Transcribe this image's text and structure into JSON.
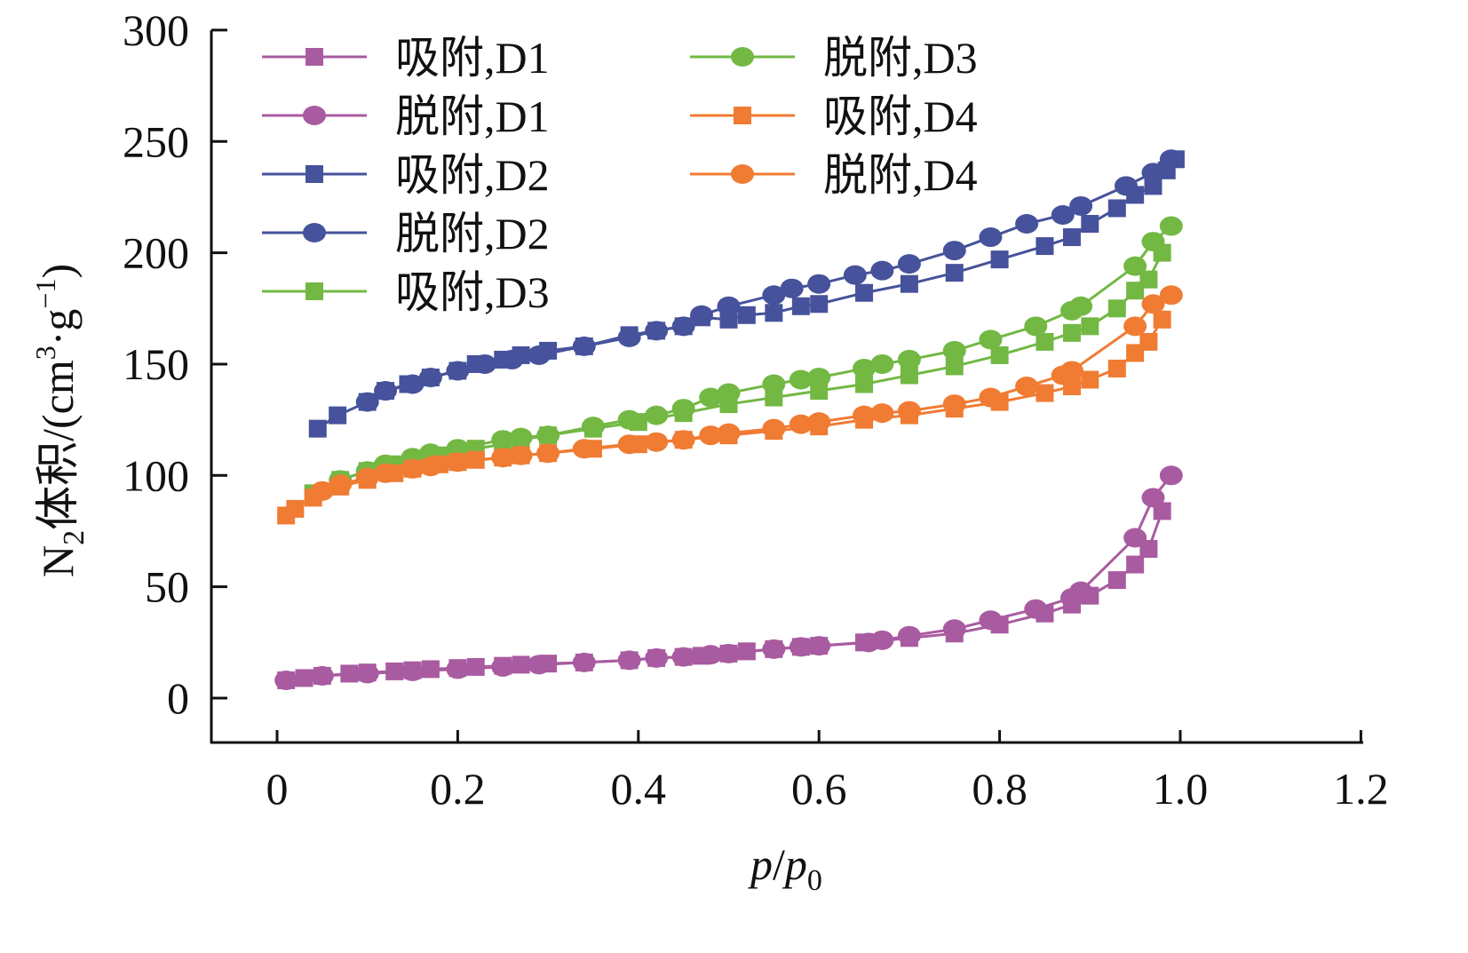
{
  "chart_data": {
    "type": "line",
    "xlabel_parts": [
      "p",
      "/",
      "p",
      "0"
    ],
    "ylabel_parts": [
      "N",
      "2",
      "体积/(cm",
      "3",
      "·g",
      "−1",
      ")"
    ],
    "xlim": [
      -0.07,
      1.2
    ],
    "ylim": [
      -20,
      300
    ],
    "xticks": [
      "0",
      "0.2",
      "0.4",
      "0.6",
      "0.8",
      "1.0",
      "1.2"
    ],
    "xtick_values": [
      0,
      0.2,
      0.4,
      0.6,
      0.8,
      1.0,
      1.2
    ],
    "yticks": [
      "0",
      "50",
      "100",
      "150",
      "200",
      "250",
      "300"
    ],
    "ytick_values": [
      0,
      50,
      100,
      150,
      200,
      250,
      300
    ],
    "legend_placement": "top-left",
    "series": [
      {
        "name": "吸附,D1",
        "color": "#A85BA0",
        "marker": "square",
        "x": [
          0.01,
          0.03,
          0.05,
          0.08,
          0.1,
          0.13,
          0.15,
          0.17,
          0.2,
          0.22,
          0.25,
          0.27,
          0.3,
          0.34,
          0.39,
          0.42,
          0.45,
          0.47,
          0.5,
          0.52,
          0.55,
          0.58,
          0.6,
          0.65,
          0.7,
          0.75,
          0.8,
          0.85,
          0.88,
          0.9,
          0.93,
          0.95,
          0.965,
          0.98
        ],
        "y": [
          8,
          9,
          10,
          11,
          11.5,
          12,
          12.5,
          13,
          13.5,
          14,
          14.5,
          15,
          15.5,
          16,
          17,
          18,
          18.5,
          19,
          20,
          21,
          22,
          23,
          23.5,
          25,
          27,
          29,
          33,
          38,
          42,
          46,
          53,
          60,
          67,
          84
        ]
      },
      {
        "name": "脱附,D1",
        "color": "#A85BA0",
        "marker": "circle",
        "x": [
          0.99,
          0.97,
          0.95,
          0.89,
          0.88,
          0.84,
          0.79,
          0.75,
          0.7,
          0.67,
          0.655,
          0.6,
          0.58,
          0.55,
          0.5,
          0.48,
          0.45,
          0.42,
          0.39,
          0.34,
          0.29,
          0.25,
          0.2,
          0.15,
          0.1,
          0.05,
          0.01
        ],
        "y": [
          100,
          90,
          72,
          48,
          45,
          40,
          35,
          31,
          28,
          26,
          25,
          23.5,
          23,
          22,
          20,
          19.5,
          18.5,
          18,
          17,
          16,
          15,
          14,
          13,
          12,
          11,
          10,
          8
        ]
      },
      {
        "name": "吸附,D2",
        "color": "#46529B",
        "marker": "square",
        "x": [
          0.045,
          0.067,
          0.1,
          0.12,
          0.145,
          0.17,
          0.2,
          0.22,
          0.25,
          0.27,
          0.3,
          0.34,
          0.39,
          0.42,
          0.45,
          0.47,
          0.5,
          0.52,
          0.55,
          0.58,
          0.6,
          0.65,
          0.7,
          0.75,
          0.8,
          0.85,
          0.88,
          0.9,
          0.93,
          0.95,
          0.97,
          0.985,
          0.995
        ],
        "y": [
          121,
          127,
          133,
          138,
          141,
          144,
          147,
          150,
          152,
          154,
          156,
          158,
          163,
          165,
          167,
          171,
          170,
          172,
          173,
          176,
          177,
          182,
          186,
          191,
          197,
          203,
          207,
          213,
          220,
          226,
          230,
          237,
          242
        ]
      },
      {
        "name": "脱附,D2",
        "color": "#46529B",
        "marker": "circle",
        "x": [
          0.99,
          0.97,
          0.94,
          0.89,
          0.87,
          0.83,
          0.79,
          0.75,
          0.7,
          0.67,
          0.64,
          0.6,
          0.57,
          0.55,
          0.5,
          0.47,
          0.45,
          0.42,
          0.39,
          0.34,
          0.29,
          0.26,
          0.23,
          0.2,
          0.17,
          0.15,
          0.12,
          0.1
        ],
        "y": [
          242,
          236,
          230,
          221,
          217,
          213,
          207,
          201,
          195,
          192,
          190,
          186,
          184,
          181,
          176,
          172,
          167,
          165,
          162,
          158,
          154,
          152,
          150,
          147,
          144,
          141,
          138,
          133
        ]
      },
      {
        "name": "吸附,D3",
        "color": "#72B843",
        "marker": "square",
        "x": [
          0.04,
          0.07,
          0.1,
          0.13,
          0.15,
          0.18,
          0.2,
          0.22,
          0.25,
          0.27,
          0.3,
          0.35,
          0.4,
          0.45,
          0.5,
          0.55,
          0.6,
          0.65,
          0.7,
          0.75,
          0.8,
          0.85,
          0.88,
          0.9,
          0.93,
          0.95,
          0.965,
          0.98
        ],
        "y": [
          92,
          98,
          102,
          105,
          107,
          109,
          111,
          112,
          114,
          116,
          118,
          121,
          124,
          128,
          132,
          135,
          138,
          141,
          145,
          149,
          154,
          160,
          164,
          167,
          175,
          183,
          188,
          200
        ]
      },
      {
        "name": "脱附,D3",
        "color": "#72B843",
        "marker": "circle",
        "x": [
          0.99,
          0.97,
          0.95,
          0.89,
          0.88,
          0.84,
          0.79,
          0.75,
          0.7,
          0.67,
          0.65,
          0.6,
          0.58,
          0.55,
          0.5,
          0.48,
          0.45,
          0.42,
          0.39,
          0.35,
          0.3,
          0.27,
          0.25,
          0.2,
          0.17,
          0.15,
          0.12,
          0.1,
          0.07,
          0.05
        ],
        "y": [
          212,
          205,
          194,
          176,
          174,
          167,
          161,
          156,
          152,
          150,
          148,
          144,
          143,
          141,
          137,
          135,
          130,
          127,
          125,
          122,
          118,
          117,
          116,
          112,
          110,
          108,
          105,
          102,
          98,
          93
        ]
      },
      {
        "name": "吸附,D4",
        "color": "#F07B33",
        "marker": "square",
        "x": [
          0.01,
          0.02,
          0.04,
          0.07,
          0.1,
          0.13,
          0.15,
          0.18,
          0.2,
          0.22,
          0.25,
          0.27,
          0.3,
          0.35,
          0.4,
          0.45,
          0.5,
          0.55,
          0.6,
          0.65,
          0.7,
          0.75,
          0.8,
          0.85,
          0.88,
          0.9,
          0.93,
          0.95,
          0.965,
          0.98
        ],
        "y": [
          82,
          85,
          90,
          95,
          98,
          101,
          103,
          105,
          106,
          107,
          108,
          109,
          110,
          112,
          114,
          116,
          118,
          120,
          122,
          125,
          127,
          130,
          133,
          137,
          140,
          143,
          148,
          155,
          160,
          170
        ]
      },
      {
        "name": "脱附,D4",
        "color": "#F07B33",
        "marker": "circle",
        "x": [
          0.99,
          0.97,
          0.95,
          0.88,
          0.87,
          0.83,
          0.79,
          0.75,
          0.7,
          0.67,
          0.65,
          0.6,
          0.58,
          0.55,
          0.5,
          0.48,
          0.45,
          0.42,
          0.39,
          0.34,
          0.3,
          0.27,
          0.25,
          0.2,
          0.17,
          0.15,
          0.12,
          0.1,
          0.07,
          0.05
        ],
        "y": [
          181,
          177,
          167,
          147,
          145,
          140,
          135,
          132,
          129,
          128,
          127,
          124,
          123,
          121,
          119,
          118,
          116,
          115,
          114,
          112,
          110,
          109,
          108,
          106,
          104,
          103,
          101,
          99,
          96,
          93
        ]
      }
    ]
  }
}
